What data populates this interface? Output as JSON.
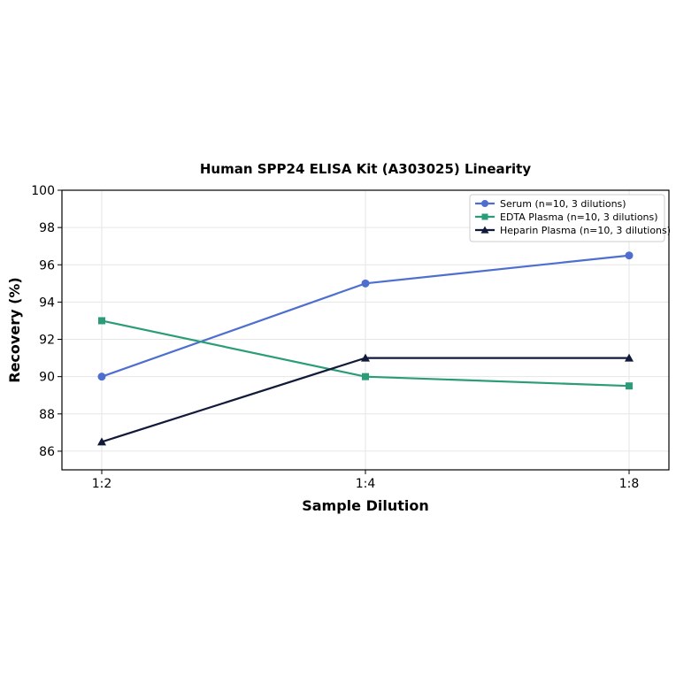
{
  "chart_data": {
    "type": "line",
    "title": "Human SPP24 ELISA Kit (A303025) Linearity",
    "xlabel": "Sample Dilution",
    "ylabel": "Recovery (%)",
    "categories": [
      "1:2",
      "1:4",
      "1:8"
    ],
    "ylim": [
      85,
      100
    ],
    "yticks": [
      86,
      88,
      90,
      92,
      94,
      96,
      98,
      100
    ],
    "grid": true,
    "legend_position": "top-right",
    "series": [
      {
        "name": "Serum (n=10, 3 dilutions)",
        "values": [
          90,
          95,
          96.5
        ],
        "color": "#4e6fd0",
        "marker": "circle"
      },
      {
        "name": "EDTA Plasma (n=10, 3 dilutions)",
        "values": [
          93,
          90,
          89.5
        ],
        "color": "#2a9d78",
        "marker": "square"
      },
      {
        "name": "Heparin Plasma (n=10, 3 dilutions)",
        "values": [
          86.5,
          91,
          91
        ],
        "color": "#121a3a",
        "marker": "triangle"
      }
    ]
  }
}
